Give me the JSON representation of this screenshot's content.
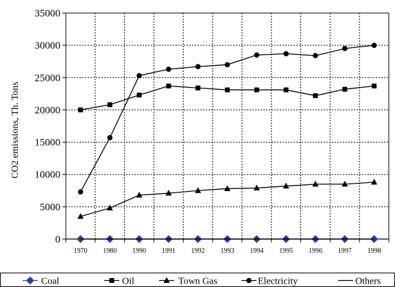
{
  "chart_data": {
    "type": "line",
    "ylabel": "CO2 emissions, Th. Tons",
    "xlabel": "",
    "categories": [
      "1970",
      "1980",
      "1990",
      "1991",
      "1992",
      "1993",
      "1994",
      "1995",
      "1996",
      "1997",
      "1998"
    ],
    "ylim": [
      0,
      35000
    ],
    "yticks": [
      0,
      5000,
      10000,
      15000,
      20000,
      25000,
      30000,
      35000
    ],
    "grid": "dashed",
    "legend_position": "bottom",
    "series": [
      {
        "name": "Coal",
        "marker": "diamond",
        "color": "#1f3fa0",
        "values": [
          0,
          0,
          0,
          0,
          0,
          0,
          0,
          0,
          0,
          0,
          0
        ]
      },
      {
        "name": "Oil",
        "marker": "square",
        "color": "#000000",
        "values": [
          20000,
          20800,
          22300,
          23700,
          23400,
          23100,
          23100,
          23100,
          22200,
          23200,
          23700
        ]
      },
      {
        "name": "Town Gas",
        "marker": "triangle",
        "color": "#000000",
        "values": [
          3500,
          4800,
          6800,
          7100,
          7500,
          7800,
          7900,
          8200,
          8500,
          8500,
          8800
        ]
      },
      {
        "name": "Electricity",
        "marker": "circle",
        "color": "#000000",
        "values": [
          7300,
          15700,
          25300,
          26300,
          26700,
          27000,
          28500,
          28700,
          28400,
          29500,
          30000
        ]
      },
      {
        "name": "Others",
        "marker": "none",
        "color": "#000000",
        "values": [
          0,
          0,
          0,
          0,
          0,
          0,
          0,
          0,
          0,
          0,
          0
        ]
      }
    ]
  }
}
